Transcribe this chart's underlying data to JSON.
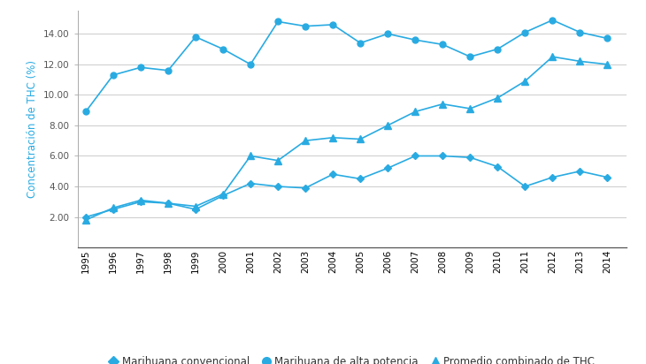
{
  "years": [
    1995,
    1996,
    1997,
    1998,
    1999,
    2000,
    2001,
    2002,
    2003,
    2004,
    2005,
    2006,
    2007,
    2008,
    2009,
    2010,
    2011,
    2012,
    2013,
    2014
  ],
  "convencional": [
    2.0,
    2.5,
    3.0,
    2.9,
    2.5,
    3.4,
    4.2,
    4.0,
    3.9,
    4.8,
    4.5,
    5.2,
    6.0,
    6.0,
    5.9,
    5.3,
    4.0,
    4.6,
    5.0,
    4.6
  ],
  "alta_potencia": [
    8.9,
    11.3,
    11.8,
    11.6,
    13.8,
    13.0,
    12.0,
    14.8,
    14.5,
    14.6,
    13.4,
    14.0,
    13.6,
    13.3,
    12.5,
    13.0,
    14.1,
    14.9,
    14.1,
    13.7
  ],
  "promedio": [
    1.8,
    2.6,
    3.1,
    2.9,
    2.7,
    3.5,
    6.0,
    5.7,
    7.0,
    7.2,
    7.1,
    8.0,
    8.9,
    9.4,
    9.1,
    9.8,
    10.9,
    12.5,
    12.2,
    12.0
  ],
  "color": "#29ABE2",
  "ylabel": "Concentración de THC (%)",
  "ylim": [
    0,
    15.5
  ],
  "yticks": [
    2.0,
    4.0,
    6.0,
    8.0,
    10.0,
    12.0,
    14.0
  ],
  "legend_labels": [
    "Marihuana convencional",
    "Marihuana de alta potencia",
    "Promedio combinado de THC"
  ],
  "background_color": "#ffffff",
  "tick_color": "#555555",
  "legend_fontsize": 8.5,
  "axis_fontsize": 7.5,
  "ylabel_fontsize": 8.5
}
